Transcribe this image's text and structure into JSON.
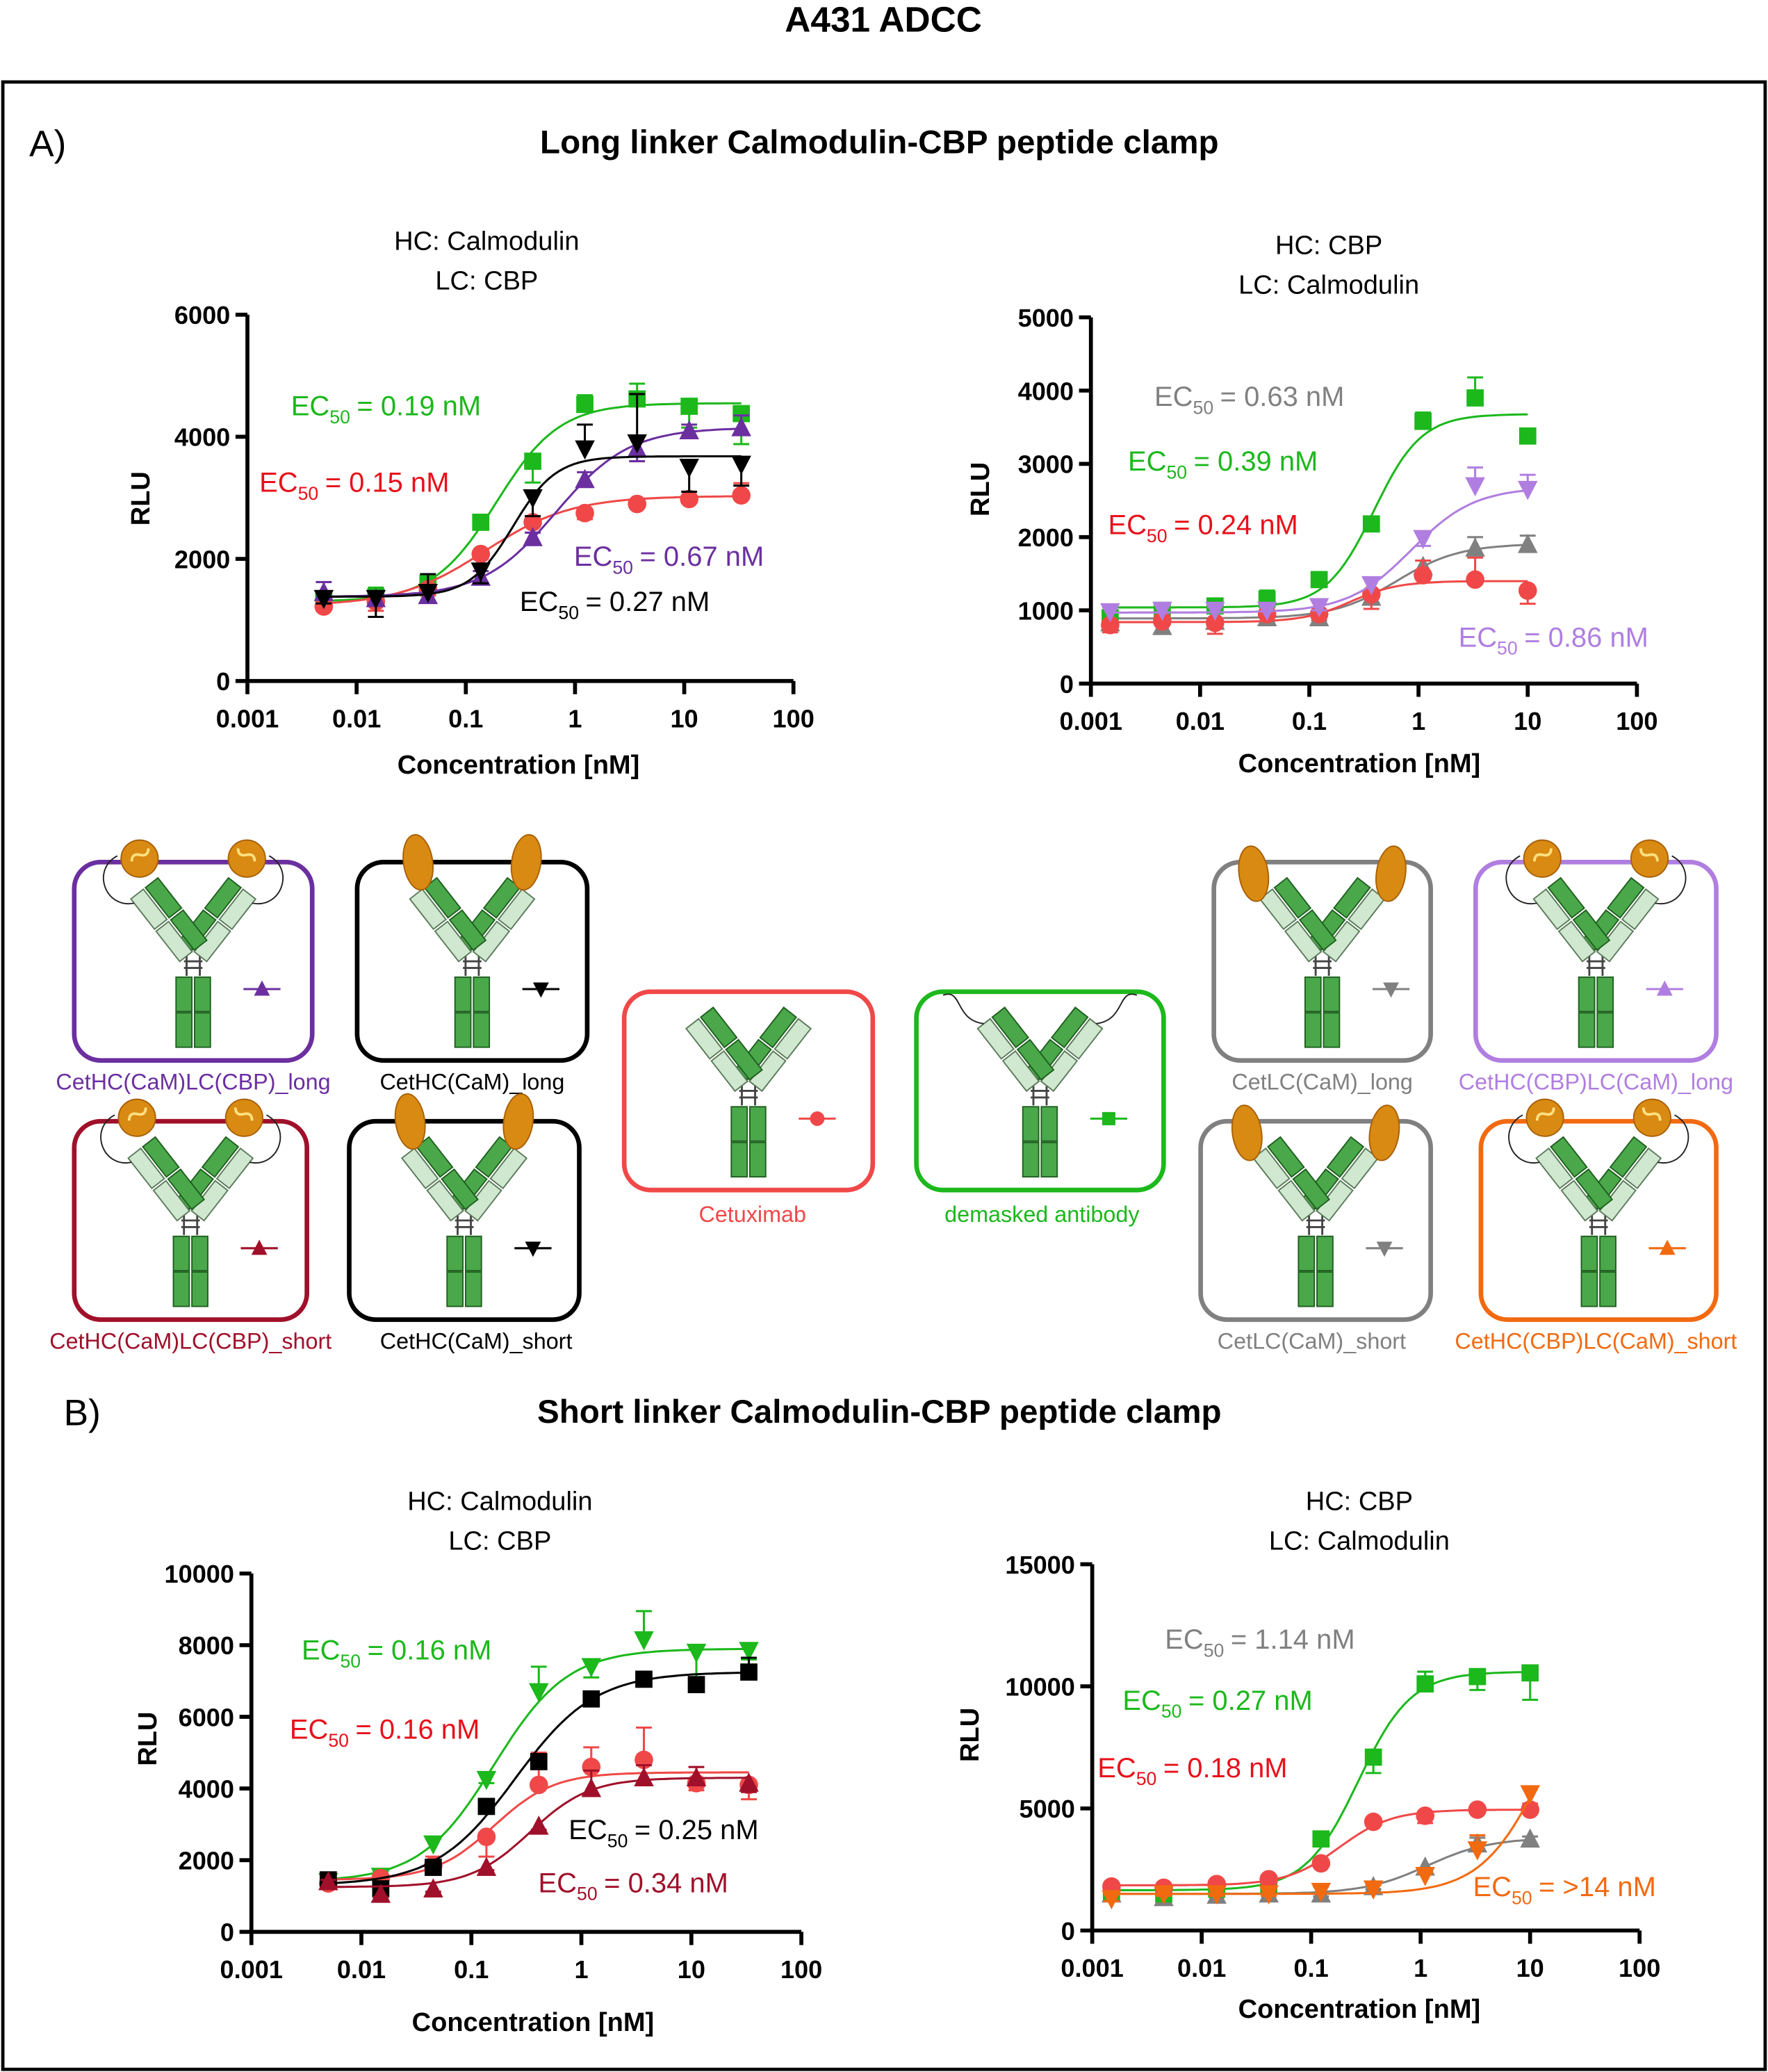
{
  "title": "A431 ADCC",
  "panels": [
    {
      "label": "A)",
      "heading": "Long linker Calmodulin-CBP peptide clamp"
    },
    {
      "label": "B)",
      "heading": "Short linker Calmodulin-CBP peptide clamp"
    }
  ],
  "ec_prefix": "EC",
  "ec_sub": "50",
  "legend": [
    {
      "label": "CetHC(CaM)LC(CBP)_long",
      "color": "#6b2fa0",
      "marker": "triangle-up",
      "style": "cam-cbp"
    },
    {
      "label": "CetHC(CaM)_long",
      "color": "#000000",
      "marker": "triangle-down",
      "style": "cam"
    },
    {
      "label": "CetHC(CaM)LC(CBP)_short",
      "color": "#a0102a",
      "marker": "triangle-up",
      "style": "cam-cbp"
    },
    {
      "label": "CetHC(CaM)_short",
      "color": "#000000",
      "marker": "triangle-down",
      "style": "cam"
    },
    {
      "label": "Cetuximab",
      "color": "#f04848",
      "marker": "circle",
      "style": "none"
    },
    {
      "label": "demasked antibody",
      "color": "#1cb81c",
      "marker": "square",
      "style": "demasked"
    },
    {
      "label": "CetLC(CaM)_long",
      "color": "#808080",
      "marker": "triangle-down",
      "style": "cam-lc"
    },
    {
      "label": "CetHC(CBP)LC(CaM)_long",
      "color": "#b07ee0",
      "marker": "triangle-up",
      "style": "cam-cbp"
    },
    {
      "label": "CetLC(CaM)_short",
      "color": "#808080",
      "marker": "triangle-down",
      "style": "cam-lc"
    },
    {
      "label": "CetHC(CBP)LC(CaM)_short",
      "color": "#f26a10",
      "marker": "triangle-up",
      "style": "cam-cbp"
    }
  ],
  "chart_data": [
    {
      "type": "scatter",
      "panel": "A",
      "title": [
        "HC: Calmodulin",
        "LC: CBP"
      ],
      "xlabel": "Concentration [nM]",
      "ylabel": "RLU",
      "xscale": "log",
      "xlim": [
        0.001,
        100
      ],
      "xticks": [
        "0.001",
        "0.01",
        "0.1",
        "1",
        "10",
        "100"
      ],
      "ylim": [
        0,
        6000
      ],
      "yticks": [
        0,
        2000,
        4000,
        6000
      ],
      "series": [
        {
          "name": "demasked antibody",
          "color": "#1cb81c",
          "label_color": "#1cb81c",
          "marker": "square",
          "ec50_label": "= 0.19 nM",
          "x": [
            0.005,
            0.015,
            0.045,
            0.137,
            0.41,
            1.23,
            3.7,
            11.1,
            33.3
          ],
          "y": [
            1300,
            1380,
            1600,
            2600,
            3600,
            4530,
            4620,
            4500,
            4380
          ],
          "err": [
            80,
            150,
            200,
            100,
            350,
            150,
            250,
            350,
            500
          ],
          "fit": {
            "bottom": 1300,
            "top": 4550,
            "ec50": 0.19,
            "hill": 1.5
          }
        },
        {
          "name": "Cetuximab",
          "color": "#f04848",
          "label_color": "#e8101a",
          "marker": "circle",
          "ec50_label": "= 0.15 nM",
          "x": [
            0.005,
            0.015,
            0.045,
            0.137,
            0.41,
            1.23,
            3.7,
            11.1,
            33.3
          ],
          "y": [
            1220,
            1300,
            1500,
            2080,
            2600,
            2750,
            2900,
            2980,
            3040
          ],
          "err": [
            60,
            150,
            100,
            80,
            100,
            100,
            60,
            60,
            200
          ],
          "fit": {
            "bottom": 1230,
            "top": 3030,
            "ec50": 0.15,
            "hill": 1.1
          }
        },
        {
          "name": "CetHC(CaM)LC(CBP)_long",
          "color": "#6b2fa0",
          "label_color": "#6b2fa0",
          "marker": "triangle-up",
          "ec50_label": "= 0.67 nM",
          "x": [
            0.005,
            0.015,
            0.045,
            0.137,
            0.41,
            1.23,
            3.7,
            11.1,
            33.3
          ],
          "y": [
            1450,
            1350,
            1400,
            1700,
            2350,
            3300,
            3800,
            4100,
            4150
          ],
          "err": [
            170,
            100,
            100,
            100,
            80,
            120,
            200,
            100,
            200
          ],
          "fit": {
            "bottom": 1380,
            "top": 4150,
            "ec50": 0.67,
            "hill": 1.3
          }
        },
        {
          "name": "CetHC(CaM)_long",
          "color": "#000000",
          "label_color": "#000000",
          "marker": "triangle-down",
          "ec50_label": "= 0.27 nM",
          "x": [
            0.005,
            0.015,
            0.045,
            0.137,
            0.41,
            1.23,
            3.7,
            11.1,
            33.3
          ],
          "y": [
            1350,
            1350,
            1450,
            1800,
            3000,
            3800,
            3900,
            3500,
            3550
          ],
          "err": [
            80,
            300,
            300,
            200,
            300,
            400,
            800,
            400,
            350
          ],
          "fit": {
            "bottom": 1380,
            "top": 3680,
            "ec50": 0.27,
            "hill": 2.2
          }
        }
      ]
    },
    {
      "type": "scatter",
      "panel": "A",
      "title": [
        "HC: CBP",
        "LC: Calmodulin"
      ],
      "xlabel": "Concentration [nM]",
      "ylabel": "RLU",
      "xscale": "log",
      "xlim": [
        0.001,
        100
      ],
      "xticks": [
        "0.001",
        "0.01",
        "0.1",
        "1",
        "10",
        "100"
      ],
      "ylim": [
        0,
        5000
      ],
      "yticks": [
        0,
        1000,
        2000,
        3000,
        4000,
        5000
      ],
      "series": [
        {
          "name": "CetLC(CaM)_long",
          "color": "#808080",
          "label_color": "#808080",
          "marker": "triangle-up",
          "ec50_label": "= 0.63 nM",
          "x": [
            0.0015,
            0.0045,
            0.0137,
            0.041,
            0.123,
            0.37,
            1.1,
            3.3,
            10
          ],
          "y": [
            830,
            780,
            850,
            900,
            900,
            1180,
            1600,
            1850,
            1900
          ],
          "err": [
            80,
            80,
            60,
            60,
            40,
            100,
            100,
            150,
            120
          ],
          "fit": {
            "bottom": 890,
            "top": 1910,
            "ec50": 0.63,
            "hill": 1.5
          }
        },
        {
          "name": "demasked antibody",
          "color": "#1cb81c",
          "label_color": "#1cb81c",
          "marker": "square",
          "ec50_label": "= 0.39 nM",
          "x": [
            0.0015,
            0.0045,
            0.0137,
            0.041,
            0.123,
            0.37,
            1.1,
            3.3,
            10
          ],
          "y": [
            900,
            1000,
            1060,
            1150,
            1420,
            2180,
            3580,
            3900,
            3380
          ],
          "err": [
            150,
            80,
            60,
            120,
            0,
            0,
            120,
            280,
            0
          ],
          "fit": {
            "bottom": 1040,
            "top": 3680,
            "ec50": 0.39,
            "hill": 2.0
          }
        },
        {
          "name": "Cetuximab",
          "color": "#f04848",
          "label_color": "#e8101a",
          "marker": "circle",
          "ec50_label": "= 0.24 nM",
          "x": [
            0.0015,
            0.0045,
            0.0137,
            0.041,
            0.123,
            0.37,
            1.1,
            3.3,
            10
          ],
          "y": [
            800,
            850,
            830,
            950,
            950,
            1220,
            1480,
            1420,
            1270
          ],
          "err": [
            100,
            80,
            150,
            60,
            60,
            200,
            200,
            300,
            180
          ],
          "fit": {
            "bottom": 840,
            "top": 1400,
            "ec50": 0.24,
            "hill": 2.0
          }
        },
        {
          "name": "CetHC(CBP)LC(CaM)_long",
          "color": "#b07ee0",
          "label_color": "#b07ee0",
          "marker": "triangle-down",
          "ec50_label": "= 0.86 nM",
          "x": [
            0.0015,
            0.0045,
            0.0137,
            0.041,
            0.123,
            0.37,
            1.1,
            3.3,
            10
          ],
          "y": [
            980,
            1000,
            1000,
            1000,
            1050,
            1350,
            1980,
            2700,
            2650
          ],
          "err": [
            60,
            100,
            50,
            60,
            50,
            80,
            100,
            250,
            200
          ],
          "fit": {
            "bottom": 970,
            "top": 2680,
            "ec50": 0.86,
            "hill": 1.5
          }
        }
      ]
    },
    {
      "type": "scatter",
      "panel": "B",
      "title": [
        "HC: Calmodulin",
        "LC: CBP"
      ],
      "xlabel": "Concentration [nM]",
      "ylabel": "RLU",
      "xscale": "log",
      "xlim": [
        0.001,
        100
      ],
      "xticks": [
        "0.001",
        "0.01",
        "0.1",
        "1",
        "10",
        "100"
      ],
      "ylim": [
        0,
        10000
      ],
      "yticks": [
        0,
        2000,
        4000,
        6000,
        8000,
        10000
      ],
      "series": [
        {
          "name": "demasked antibody",
          "color": "#1cb81c",
          "label_color": "#1cb81c",
          "marker": "triangle-down",
          "ec50_label": "= 0.16 nM",
          "x": [
            0.005,
            0.015,
            0.045,
            0.137,
            0.41,
            1.23,
            3.7,
            11.1,
            33.3
          ],
          "y": [
            1400,
            1550,
            2450,
            4250,
            6700,
            7400,
            8150,
            7800,
            7850
          ],
          "err": [
            60,
            100,
            150,
            100,
            700,
            300,
            800,
            800,
            250
          ],
          "fit": {
            "bottom": 1400,
            "top": 7900,
            "ec50": 0.16,
            "hill": 1.3
          }
        },
        {
          "name": "Cetuximab",
          "color": "#f04848",
          "label_color": "#e8101a",
          "marker": "circle",
          "ec50_label": "= 0.16 nM",
          "x": [
            0.005,
            0.015,
            0.045,
            0.137,
            0.41,
            1.23,
            3.7,
            11.1,
            33.3
          ],
          "y": [
            1350,
            1500,
            1850,
            2650,
            4100,
            4600,
            4800,
            4150,
            4100
          ],
          "err": [
            60,
            100,
            250,
            550,
            900,
            550,
            900,
            200,
            400
          ],
          "fit": {
            "bottom": 1450,
            "top": 4450,
            "ec50": 0.16,
            "hill": 1.6
          }
        },
        {
          "name": "CetHC(CaM)_short",
          "color": "#000000",
          "label_color": "#000000",
          "marker": "square",
          "ec50_label": "= 0.25 nM",
          "x": [
            0.005,
            0.015,
            0.045,
            0.137,
            0.41,
            1.23,
            3.7,
            11.1,
            33.3
          ],
          "y": [
            1450,
            1200,
            1800,
            3500,
            4750,
            6500,
            7050,
            6900,
            7250
          ],
          "err": [
            50,
            80,
            100,
            100,
            200,
            100,
            100,
            100,
            400
          ],
          "fit": {
            "bottom": 1300,
            "top": 7250,
            "ec50": 0.25,
            "hill": 1.2
          }
        },
        {
          "name": "CetHC(CaM)LC(CBP)_short",
          "color": "#a0102a",
          "label_color": "#a0102a",
          "marker": "triangle-up",
          "ec50_label": "= 0.34 nM",
          "x": [
            0.005,
            0.015,
            0.045,
            0.137,
            0.41,
            1.23,
            3.7,
            11.1,
            33.3
          ],
          "y": [
            1400,
            1050,
            1200,
            1800,
            2950,
            4000,
            4300,
            4300,
            4150
          ],
          "err": [
            50,
            80,
            80,
            80,
            100,
            500,
            350,
            300,
            250
          ],
          "fit": {
            "bottom": 1250,
            "top": 4300,
            "ec50": 0.34,
            "hill": 1.6
          }
        }
      ]
    },
    {
      "type": "scatter",
      "panel": "B",
      "title": [
        "HC: CBP",
        "LC: Calmodulin"
      ],
      "xlabel": "Concentration [nM]",
      "ylabel": "RLU",
      "xscale": "log",
      "xlim": [
        0.001,
        100
      ],
      "xticks": [
        "0.001",
        "0.01",
        "0.1",
        "1",
        "10",
        "100"
      ],
      "ylim": [
        0,
        15000
      ],
      "yticks": [
        0,
        5000,
        10000,
        15000
      ],
      "series": [
        {
          "name": "CetLC(CaM)_short",
          "color": "#808080",
          "label_color": "#808080",
          "marker": "triangle-up",
          "ec50_label": "= 1.14 nM",
          "x": [
            0.0015,
            0.0045,
            0.0137,
            0.041,
            0.123,
            0.37,
            1.1,
            3.3,
            10
          ],
          "y": [
            1500,
            1350,
            1450,
            1500,
            1500,
            1800,
            2600,
            3550,
            3750
          ],
          "err": [
            80,
            80,
            80,
            80,
            100,
            100,
            150,
            250,
            100
          ],
          "fit": {
            "bottom": 1500,
            "top": 3800,
            "ec50": 1.14,
            "hill": 1.5
          }
        },
        {
          "name": "demasked antibody",
          "color": "#1cb81c",
          "label_color": "#1cb81c",
          "marker": "square",
          "ec50_label": "= 0.27 nM",
          "x": [
            0.0015,
            0.0045,
            0.0137,
            0.041,
            0.123,
            0.37,
            1.1,
            3.3,
            10
          ],
          "y": [
            1600,
            1500,
            1700,
            1900,
            3750,
            7100,
            10100,
            10400,
            10550
          ],
          "err": [
            100,
            100,
            80,
            100,
            100,
            650,
            500,
            550,
            1100
          ],
          "fit": {
            "bottom": 1650,
            "top": 10600,
            "ec50": 0.27,
            "hill": 1.8
          }
        },
        {
          "name": "Cetuximab",
          "color": "#f04848",
          "label_color": "#e8101a",
          "marker": "circle",
          "ec50_label": "= 0.18 nM",
          "x": [
            0.0015,
            0.0045,
            0.0137,
            0.041,
            0.123,
            0.37,
            1.1,
            3.3,
            10
          ],
          "y": [
            1800,
            1750,
            1900,
            2100,
            2750,
            4450,
            4700,
            4950,
            4950
          ],
          "err": [
            100,
            100,
            100,
            100,
            100,
            100,
            300,
            100,
            250
          ],
          "fit": {
            "bottom": 1850,
            "top": 4950,
            "ec50": 0.18,
            "hill": 1.8
          }
        },
        {
          "name": "CetHC(CBP)LC(CaM)_short",
          "color": "#f26a10",
          "label_color": "#f26a10",
          "marker": "triangle-down",
          "ec50_label": "= >14 nM",
          "x": [
            0.0015,
            0.0045,
            0.0137,
            0.041,
            0.123,
            0.37,
            1.1,
            3.3,
            10
          ],
          "y": [
            1300,
            1500,
            1500,
            1500,
            1600,
            1700,
            2250,
            3300,
            5600
          ],
          "err": [
            100,
            80,
            80,
            80,
            200,
            150,
            100,
            600,
            300
          ],
          "fit": {
            "bottom": 1500,
            "top": 12000,
            "ec50": 14,
            "hill": 1.5
          }
        }
      ]
    }
  ]
}
